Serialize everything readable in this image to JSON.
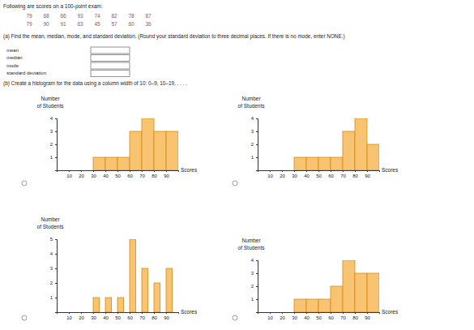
{
  "problem": {
    "intro": "Following are scores on a 100-point exam:",
    "scores": [
      [
        79,
        68,
        66,
        93,
        74,
        82,
        78,
        87
      ],
      [
        79,
        90,
        91,
        63,
        45,
        57,
        60,
        36
      ]
    ],
    "part_a": "(a) Find the mean, median, mode, and standard deviation. (Round your standard deviation to three decimal places. If there is no mode, enter NONE.)",
    "fields": [
      "mean",
      "median",
      "mode",
      "standard deviation"
    ],
    "part_b": "(b) Create a histogram for the data using a column width of 10: 0–9, 10–19, . . . ."
  },
  "chart_data": [
    {
      "type": "histogram",
      "ylabel": [
        "Number",
        "of Students"
      ],
      "xlabel": "Scores",
      "bins": [
        30,
        40,
        50,
        60,
        70,
        80,
        90,
        100
      ],
      "values": [
        1,
        1,
        1,
        3,
        4,
        3,
        3
      ],
      "color": "#f8c471",
      "xlim": [
        0,
        100
      ],
      "xticks": [
        10,
        20,
        30,
        40,
        50,
        60,
        70,
        80,
        90
      ],
      "ylim": [
        0,
        4
      ],
      "yticks": [
        1,
        2,
        3,
        4
      ]
    },
    {
      "type": "histogram",
      "ylabel": [
        "Number",
        "of Students"
      ],
      "xlabel": "Scores",
      "bins": [
        30,
        40,
        50,
        60,
        70,
        80,
        90,
        100
      ],
      "values": [
        1,
        1,
        1,
        1,
        3,
        4,
        2
      ],
      "color": "#f8c471",
      "xlim": [
        0,
        100
      ],
      "xticks": [
        10,
        20,
        30,
        40,
        50,
        60,
        70,
        80,
        90
      ],
      "ylim": [
        0,
        4
      ],
      "yticks": [
        1,
        2,
        3,
        4
      ]
    },
    {
      "type": "histogram",
      "ylabel": [
        "Number",
        "of Students"
      ],
      "xlabel": "Scores",
      "bins": [
        30,
        35,
        40,
        45,
        50,
        55,
        60,
        65,
        70,
        75,
        80,
        85,
        90,
        95
      ],
      "values": [
        1,
        0,
        1,
        0,
        1,
        0,
        5,
        0,
        3,
        0,
        2,
        0,
        3
      ],
      "color": "#f8c471",
      "xlim": [
        0,
        100
      ],
      "xticks": [
        10,
        20,
        30,
        40,
        50,
        60,
        70,
        80,
        90
      ],
      "ylim": [
        0,
        5
      ],
      "yticks": [
        1,
        2,
        3,
        4,
        5
      ]
    },
    {
      "type": "histogram",
      "ylabel": [
        "Number",
        "of Students"
      ],
      "xlabel": "Scores",
      "bins": [
        30,
        40,
        50,
        60,
        70,
        80,
        90,
        100
      ],
      "values": [
        1,
        1,
        1,
        2,
        4,
        3,
        3
      ],
      "color": "#f8c471",
      "xlim": [
        0,
        100
      ],
      "xticks": [
        10,
        20,
        30,
        40,
        50,
        60,
        70,
        80,
        90
      ],
      "ylim": [
        0,
        4
      ],
      "yticks": [
        1,
        2,
        3,
        4
      ]
    }
  ]
}
